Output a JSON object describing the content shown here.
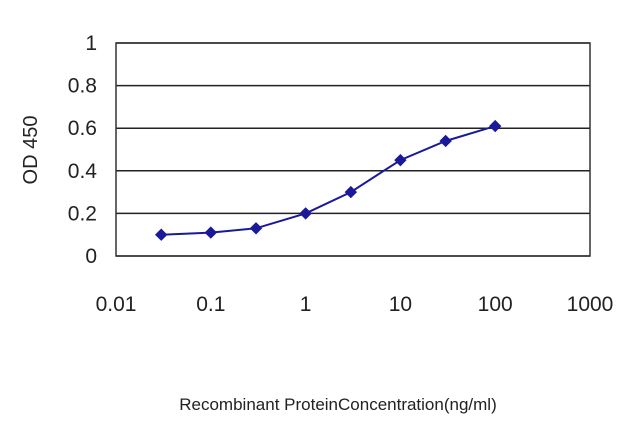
{
  "chart_data": {
    "type": "line",
    "title": "",
    "xlabel": "Recombinant ProteinConcentration(ng/ml)",
    "ylabel": "OD 450",
    "x_scale": "log",
    "xlim": [
      0.01,
      1000
    ],
    "ylim": [
      0,
      1
    ],
    "x_ticks": [
      "0.01",
      "0.1",
      "1",
      "10",
      "100",
      "1000"
    ],
    "y_ticks": [
      "0",
      "0.2",
      "0.4",
      "0.6",
      "0.8",
      "1"
    ],
    "grid": "horizontal",
    "legend": "none",
    "series": [
      {
        "color": "#1a1a99",
        "marker": "diamond",
        "points": [
          {
            "x": 0.03,
            "y": 0.1
          },
          {
            "x": 0.1,
            "y": 0.11
          },
          {
            "x": 0.3,
            "y": 0.13
          },
          {
            "x": 1,
            "y": 0.2
          },
          {
            "x": 3,
            "y": 0.3
          },
          {
            "x": 10,
            "y": 0.45
          },
          {
            "x": 30,
            "y": 0.54
          },
          {
            "x": 100,
            "y": 0.61
          }
        ]
      }
    ]
  }
}
